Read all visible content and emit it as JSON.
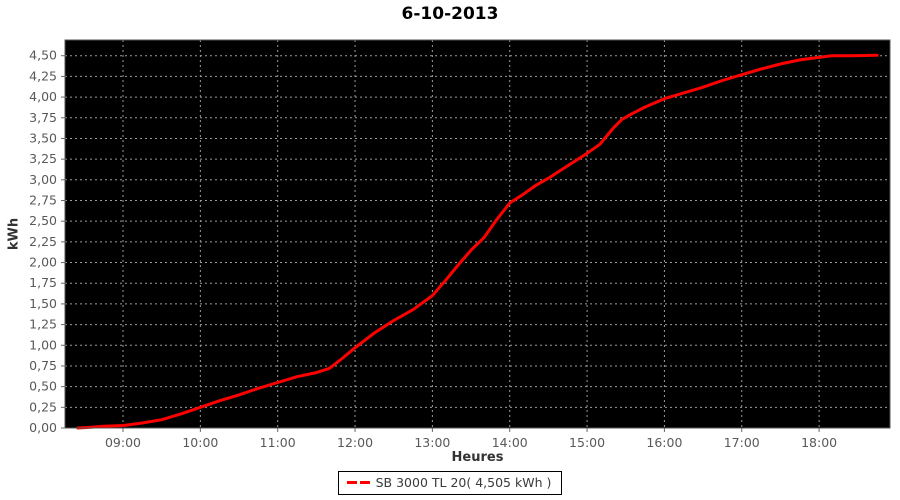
{
  "title": "6-10-2013",
  "legend": {
    "label": "SB 3000 TL 20( 4,505 kWh )",
    "total_kwh_text": "4,505 kWh"
  },
  "colors": {
    "line": "#ff0000",
    "plot_background": "#000000",
    "grid": "#9c9c9c",
    "tick_text": "#595959",
    "tick_mark": "#666666",
    "plot_border": "#545454",
    "page_background": "#ffffff"
  },
  "chart_data": {
    "type": "line",
    "title": "6-10-2013",
    "xlabel": "Heures",
    "ylabel": "kWh",
    "grid": true,
    "legend_position": "bottom-center",
    "x_domain": [
      "08:15",
      "18:55"
    ],
    "ylim": [
      0,
      4.69
    ],
    "x_ticks": [
      "09:00",
      "10:00",
      "11:00",
      "12:00",
      "13:00",
      "14:00",
      "15:00",
      "16:00",
      "17:00",
      "18:00"
    ],
    "y_tick_values": [
      0.0,
      0.25,
      0.5,
      0.75,
      1.0,
      1.25,
      1.5,
      1.75,
      2.0,
      2.25,
      2.5,
      2.75,
      3.0,
      3.25,
      3.5,
      3.75,
      4.0,
      4.25,
      4.5
    ],
    "y_tick_labels": [
      "0,00",
      "0,25",
      "0,50",
      "0,75",
      "1,00",
      "1,25",
      "1,50",
      "1,75",
      "2,00",
      "2,25",
      "2,50",
      "2,75",
      "3,00",
      "3,25",
      "3,50",
      "3,75",
      "4,00",
      "4,25",
      "4,50"
    ],
    "series": [
      {
        "name": "SB 3000 TL 20( 4,505 kWh )",
        "color": "#ff0000",
        "points": [
          [
            "08:25",
            0.0
          ],
          [
            "08:35",
            0.01
          ],
          [
            "08:45",
            0.02
          ],
          [
            "09:00",
            0.03
          ],
          [
            "09:15",
            0.06
          ],
          [
            "09:30",
            0.1
          ],
          [
            "09:45",
            0.17
          ],
          [
            "10:00",
            0.25
          ],
          [
            "10:15",
            0.33
          ],
          [
            "10:30",
            0.4
          ],
          [
            "10:45",
            0.48
          ],
          [
            "11:00",
            0.55
          ],
          [
            "11:15",
            0.62
          ],
          [
            "11:30",
            0.67
          ],
          [
            "11:40",
            0.72
          ],
          [
            "11:50",
            0.84
          ],
          [
            "12:00",
            0.97
          ],
          [
            "12:15",
            1.15
          ],
          [
            "12:30",
            1.3
          ],
          [
            "12:45",
            1.43
          ],
          [
            "13:00",
            1.6
          ],
          [
            "13:10",
            1.78
          ],
          [
            "13:20",
            1.97
          ],
          [
            "13:30",
            2.15
          ],
          [
            "13:40",
            2.3
          ],
          [
            "13:50",
            2.52
          ],
          [
            "14:00",
            2.72
          ],
          [
            "14:10",
            2.82
          ],
          [
            "14:20",
            2.93
          ],
          [
            "14:30",
            3.02
          ],
          [
            "14:45",
            3.17
          ],
          [
            "15:00",
            3.32
          ],
          [
            "15:10",
            3.43
          ],
          [
            "15:20",
            3.62
          ],
          [
            "15:27",
            3.73
          ],
          [
            "15:35",
            3.8
          ],
          [
            "15:45",
            3.88
          ],
          [
            "16:00",
            3.98
          ],
          [
            "16:15",
            4.05
          ],
          [
            "16:30",
            4.12
          ],
          [
            "16:45",
            4.2
          ],
          [
            "17:00",
            4.27
          ],
          [
            "17:15",
            4.34
          ],
          [
            "17:30",
            4.4
          ],
          [
            "17:45",
            4.45
          ],
          [
            "18:00",
            4.48
          ],
          [
            "18:10",
            4.5
          ],
          [
            "18:25",
            4.5
          ],
          [
            "18:45",
            4.505
          ]
        ]
      }
    ]
  }
}
